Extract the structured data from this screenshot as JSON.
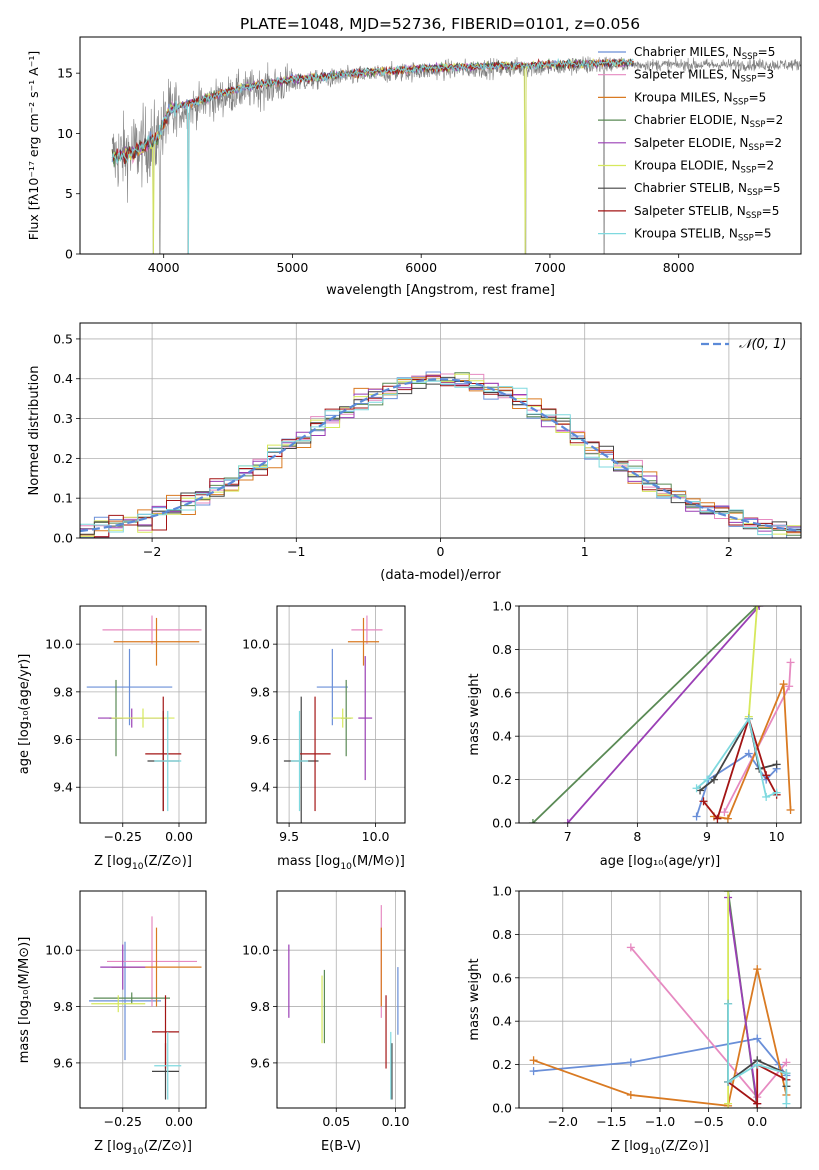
{
  "title": "PLATE=1048, MJD=52736, FIBERID=0101, z=0.056",
  "colors": {
    "Chabrier MILES": "#6a8fd8",
    "Salpeter MILES": "#e68ac1",
    "Kroupa MILES": "#d97a22",
    "Chabrier ELODIE": "#5a8a55",
    "Salpeter ELODIE": "#9a3fb5",
    "Kroupa ELODIE": "#d6e85c",
    "Chabrier STELIB": "#444444",
    "Salpeter STELIB": "#a31515",
    "Kroupa STELIB": "#7fd9df",
    "data": "#808080",
    "normal": "#5b8ad8"
  },
  "chart_data": [
    {
      "panel": "spectrum",
      "type": "line",
      "xlabel": "wavelength [Angstrom, rest frame]",
      "ylabel": "Flux [fλ10⁻¹⁷ erg cm⁻² s⁻¹ A⁻¹]",
      "xlim": [
        3350,
        8950
      ],
      "ylim": [
        0,
        18
      ],
      "xticks": [
        4000,
        5000,
        6000,
        7000,
        8000
      ],
      "yticks": [
        0,
        5,
        10,
        15
      ],
      "legend_position": "right",
      "legend": [
        {
          "label": "Chabrier MILES, N",
          "sub": "SSP",
          "eq": "=5"
        },
        {
          "label": "Salpeter MILES, N",
          "sub": "SSP",
          "eq": "=3"
        },
        {
          "label": "Kroupa MILES, N",
          "sub": "SSP",
          "eq": "=5"
        },
        {
          "label": "Chabrier ELODIE, N",
          "sub": "SSP",
          "eq": "=2"
        },
        {
          "label": "Salpeter ELODIE, N",
          "sub": "SSP",
          "eq": "=2"
        },
        {
          "label": "Kroupa ELODIE, N",
          "sub": "SSP",
          "eq": "=2"
        },
        {
          "label": "Chabrier STELIB, N",
          "sub": "SSP",
          "eq": "=5"
        },
        {
          "label": "Salpeter STELIB, N",
          "sub": "SSP",
          "eq": "=5"
        },
        {
          "label": "Kroupa STELIB, N",
          "sub": "SSP",
          "eq": "=5"
        }
      ],
      "series": [
        {
          "name": "data",
          "x_range": [
            3600,
            8950
          ],
          "continuum": [
            [
              3600,
              8.0
            ],
            [
              3750,
              8.5
            ],
            [
              3950,
              9.5
            ],
            [
              4050,
              11.5
            ],
            [
              4300,
              12.5
            ],
            [
              4600,
              13.5
            ],
            [
              5000,
              14.2
            ],
            [
              5500,
              14.8
            ],
            [
              6000,
              15.2
            ],
            [
              6500,
              15.4
            ],
            [
              7000,
              15.5
            ],
            [
              7400,
              15.7
            ]
          ],
          "masked_dips_x": [
            3920,
            3970,
            4190,
            6810,
            7420
          ]
        },
        {
          "name": "models",
          "continuum": [
            [
              3600,
              8.0
            ],
            [
              3750,
              8.3
            ],
            [
              3950,
              9.6
            ],
            [
              4050,
              12.0
            ],
            [
              4300,
              12.8
            ],
            [
              4600,
              13.8
            ],
            [
              5000,
              14.5
            ],
            [
              5500,
              15.0
            ],
            [
              6000,
              15.4
            ],
            [
              6500,
              15.6
            ],
            [
              7000,
              15.7
            ],
            [
              7650,
              15.9
            ]
          ]
        }
      ]
    },
    {
      "panel": "residuals",
      "type": "line",
      "xlabel": "(data-model)/error",
      "ylabel": "Normed distribution",
      "xlim": [
        -2.5,
        2.5
      ],
      "ylim": [
        0,
        0.54
      ],
      "xticks": [
        -2,
        -1,
        0,
        1,
        2
      ],
      "yticks": [
        0.0,
        0.1,
        0.2,
        0.3,
        0.4,
        0.5
      ],
      "legend": "𝒩(0, 1)",
      "legend_position": "top-right",
      "series": [
        {
          "name": "𝒩(0, 1)",
          "mean": 0,
          "sigma": 1
        }
      ]
    },
    {
      "panel": "age_vs_Z",
      "type": "scatter",
      "xlabel_pre": "Z [log",
      "xlabel_sub": "10",
      "xlabel_post": "(Z/Z⊙)]",
      "ylabel": "age  [log₁₀(age/yr)]",
      "xlim": [
        -0.44,
        0.12
      ],
      "ylim": [
        9.25,
        10.16
      ],
      "xticks": [
        -0.25,
        0.0
      ],
      "yticks": [
        9.4,
        9.6,
        9.8,
        10.0
      ],
      "points": [
        {
          "model": "Chabrier MILES",
          "x": -0.22,
          "y": 9.82,
          "xerr": 0.19,
          "yerr": 0.16
        },
        {
          "model": "Salpeter MILES",
          "x": -0.12,
          "y": 10.06,
          "xerr": 0.22,
          "yerr": 0.06
        },
        {
          "model": "Kroupa MILES",
          "x": -0.1,
          "y": 10.01,
          "xerr": 0.19,
          "yerr": 0.1
        },
        {
          "model": "Chabrier ELODIE",
          "x": -0.28,
          "y": 9.69,
          "xerr": 0.03,
          "yerr": 0.16
        },
        {
          "model": "Salpeter ELODIE",
          "x": -0.21,
          "y": 9.69,
          "xerr": 0.15,
          "yerr": 0.04
        },
        {
          "model": "Kroupa ELODIE",
          "x": -0.16,
          "y": 9.69,
          "xerr": 0.14,
          "yerr": 0.04
        },
        {
          "model": "Chabrier STELIB",
          "x": -0.07,
          "y": 9.51,
          "xerr": 0.07,
          "yerr": 0.21
        },
        {
          "model": "Salpeter STELIB",
          "x": -0.07,
          "y": 9.54,
          "xerr": 0.08,
          "yerr": 0.24
        },
        {
          "model": "Kroupa STELIB",
          "x": -0.05,
          "y": 9.51,
          "xerr": 0.06,
          "yerr": 0.21
        }
      ]
    },
    {
      "panel": "age_vs_mass",
      "type": "scatter",
      "xlabel_pre": "mass [log",
      "xlabel_sub": "10",
      "xlabel_post": "(M/M⊙)]",
      "xlim": [
        9.43,
        10.17
      ],
      "ylim": [
        9.25,
        10.16
      ],
      "xticks": [
        9.5,
        10.0
      ],
      "yticks": [
        9.4,
        9.6,
        9.8,
        10.0
      ],
      "points": [
        {
          "model": "Chabrier MILES",
          "x": 9.75,
          "y": 9.82,
          "xerr": 0.09,
          "yerr": 0.16
        },
        {
          "model": "Salpeter MILES",
          "x": 9.95,
          "y": 10.06,
          "xerr": 0.09,
          "yerr": 0.06
        },
        {
          "model": "Kroupa MILES",
          "x": 9.93,
          "y": 10.01,
          "xerr": 0.09,
          "yerr": 0.1
        },
        {
          "model": "Chabrier ELODIE",
          "x": 9.83,
          "y": 9.69,
          "xerr": 0.03,
          "yerr": 0.16
        },
        {
          "model": "Salpeter ELODIE",
          "x": 9.94,
          "y": 9.69,
          "xerr": 0.04,
          "yerr": 0.26
        },
        {
          "model": "Kroupa ELODIE",
          "x": 9.81,
          "y": 9.69,
          "xerr": 0.06,
          "yerr": 0.04
        },
        {
          "model": "Chabrier STELIB",
          "x": 9.57,
          "y": 9.51,
          "xerr": 0.1,
          "yerr": 0.27
        },
        {
          "model": "Salpeter STELIB",
          "x": 9.65,
          "y": 9.54,
          "xerr": 0.09,
          "yerr": 0.24
        },
        {
          "model": "Kroupa STELIB",
          "x": 9.56,
          "y": 9.51,
          "xerr": 0.05,
          "yerr": 0.21
        }
      ]
    },
    {
      "panel": "mass_weight_vs_age",
      "type": "line",
      "xlabel": "age  [log₁₀(age/yr)]",
      "ylabel": "mass weight",
      "xlim": [
        6.3,
        10.35
      ],
      "ylim": [
        0,
        1
      ],
      "xticks": [
        7,
        8,
        9,
        10
      ],
      "yticks": [
        0.0,
        0.2,
        0.4,
        0.6,
        0.8,
        1.0
      ],
      "series": [
        {
          "name": "Chabrier MILES",
          "x": [
            8.85,
            9.02,
            9.6,
            9.85,
            10.0
          ],
          "y": [
            0.03,
            0.2,
            0.32,
            0.2,
            0.25
          ]
        },
        {
          "name": "Salpeter MILES",
          "x": [
            9.25,
            10.18,
            10.2
          ],
          "y": [
            0.05,
            0.63,
            0.74
          ]
        },
        {
          "name": "Kroupa MILES",
          "x": [
            9.1,
            9.3,
            10.1,
            10.2
          ],
          "y": [
            0.03,
            0.02,
            0.64,
            0.06
          ]
        },
        {
          "name": "Chabrier ELODIE",
          "x": [
            6.5,
            9.72
          ],
          "y": [
            0.0,
            1.0
          ]
        },
        {
          "name": "Salpeter ELODIE",
          "x": [
            7.0,
            9.75
          ],
          "y": [
            0.0,
            1.0
          ]
        },
        {
          "name": "Kroupa ELODIE",
          "x": [
            9.6,
            9.72
          ],
          "y": [
            0.49,
            1.0
          ]
        },
        {
          "name": "Chabrier STELIB",
          "x": [
            8.9,
            9.1,
            9.6,
            9.75,
            10.0
          ],
          "y": [
            0.15,
            0.2,
            0.48,
            0.25,
            0.27
          ]
        },
        {
          "name": "Salpeter STELIB",
          "x": [
            8.95,
            9.15,
            9.6,
            9.85,
            10.0
          ],
          "y": [
            0.1,
            0.02,
            0.48,
            0.22,
            0.13
          ]
        },
        {
          "name": "Kroupa STELIB",
          "x": [
            8.85,
            9.0,
            9.6,
            9.85,
            10.0
          ],
          "y": [
            0.16,
            0.2,
            0.48,
            0.12,
            0.14
          ]
        }
      ]
    },
    {
      "panel": "mass_vs_Z",
      "type": "scatter",
      "xlabel_pre": "Z [log",
      "xlabel_sub": "10",
      "xlabel_post": "(Z/Z⊙)]",
      "ylabel": "mass [log₁₀(M/M⊙)]",
      "xlim": [
        -0.44,
        0.12
      ],
      "ylim": [
        9.44,
        10.21
      ],
      "xticks": [
        -0.25,
        0.0
      ],
      "yticks": [
        9.6,
        9.8,
        10.0
      ],
      "points": [
        {
          "model": "Chabrier MILES",
          "x": -0.24,
          "y": 9.82,
          "xerr": 0.16,
          "yerr": 0.21
        },
        {
          "model": "Salpeter MILES",
          "x": -0.12,
          "y": 9.96,
          "xerr": 0.2,
          "yerr": 0.16
        },
        {
          "model": "Kroupa MILES",
          "x": -0.1,
          "y": 9.94,
          "xerr": 0.2,
          "yerr": 0.14
        },
        {
          "model": "Chabrier ELODIE",
          "x": -0.21,
          "y": 9.83,
          "xerr": 0.17,
          "yerr": 0.02
        },
        {
          "model": "Salpeter ELODIE",
          "x": -0.25,
          "y": 9.94,
          "xerr": 0.1,
          "yerr": 0.08
        },
        {
          "model": "Kroupa ELODIE",
          "x": -0.27,
          "y": 9.81,
          "xerr": 0.12,
          "yerr": 0.03
        },
        {
          "model": "Chabrier STELIB",
          "x": -0.06,
          "y": 9.57,
          "xerr": 0.06,
          "yerr": 0.1
        },
        {
          "model": "Salpeter STELIB",
          "x": -0.06,
          "y": 9.71,
          "xerr": 0.06,
          "yerr": 0.13
        },
        {
          "model": "Kroupa STELIB",
          "x": -0.05,
          "y": 9.59,
          "xerr": 0.06,
          "yerr": 0.12
        }
      ]
    },
    {
      "panel": "mass_vs_EBV",
      "type": "scatter",
      "xlabel": "E(B-V)",
      "xlim": [
        0.0,
        0.108
      ],
      "ylim": [
        9.44,
        10.21
      ],
      "xticks": [
        0.05,
        0.1
      ],
      "yticks": [
        9.6,
        9.8,
        10.0
      ],
      "points": [
        {
          "model": "Chabrier MILES",
          "x": 0.102,
          "y": 9.82,
          "yerr": 0.12
        },
        {
          "model": "Salpeter MILES",
          "x": 0.088,
          "y": 9.96,
          "yerr": 0.2
        },
        {
          "model": "Kroupa MILES",
          "x": 0.088,
          "y": 9.94,
          "yerr": 0.14
        },
        {
          "model": "Chabrier ELODIE",
          "x": 0.04,
          "y": 9.8,
          "yerr": 0.13
        },
        {
          "model": "Salpeter ELODIE",
          "x": 0.01,
          "y": 9.89,
          "yerr": 0.13
        },
        {
          "model": "Kroupa ELODIE",
          "x": 0.038,
          "y": 9.79,
          "yerr": 0.12
        },
        {
          "model": "Chabrier STELIB",
          "x": 0.097,
          "y": 9.57,
          "yerr": 0.1
        },
        {
          "model": "Salpeter STELIB",
          "x": 0.092,
          "y": 9.71,
          "yerr": 0.13
        },
        {
          "model": "Kroupa STELIB",
          "x": 0.096,
          "y": 9.59,
          "yerr": 0.12
        }
      ]
    },
    {
      "panel": "mass_weight_vs_Z",
      "type": "line",
      "xlabel_pre": "Z [log",
      "xlabel_sub": "10",
      "xlabel_post": "(Z/Z⊙)]",
      "ylabel": "mass weight",
      "xlim": [
        -2.45,
        0.45
      ],
      "ylim": [
        0,
        1
      ],
      "xticks": [
        -2.0,
        -1.5,
        -1.0,
        -0.5,
        0.0
      ],
      "yticks": [
        0.0,
        0.2,
        0.4,
        0.6,
        0.8,
        1.0
      ],
      "series": [
        {
          "name": "Chabrier MILES",
          "x": [
            -2.3,
            -1.3,
            0.0,
            0.22,
            0.3
          ],
          "y": [
            0.17,
            0.21,
            0.32,
            0.2,
            0.15
          ]
        },
        {
          "name": "Salpeter MILES",
          "x": [
            -1.3,
            0.0,
            0.3
          ],
          "y": [
            0.74,
            0.05,
            0.21
          ]
        },
        {
          "name": "Kroupa MILES",
          "x": [
            -2.3,
            -1.3,
            -0.3,
            0.0,
            0.3
          ],
          "y": [
            0.22,
            0.06,
            0.01,
            0.64,
            0.06
          ]
        },
        {
          "name": "Chabrier ELODIE",
          "x": [
            -0.3,
            0.0
          ],
          "y": [
            1.0,
            0.0
          ]
        },
        {
          "name": "Salpeter ELODIE",
          "x": [
            -0.3,
            0.0
          ],
          "y": [
            0.97,
            0.02
          ]
        },
        {
          "name": "Kroupa ELODIE",
          "x": [
            -0.3,
            -0.3
          ],
          "y": [
            0.02,
            1.0
          ]
        },
        {
          "name": "Chabrier STELIB",
          "x": [
            -0.3,
            -0.3,
            0.0,
            0.3,
            0.3
          ],
          "y": [
            0.48,
            0.12,
            0.22,
            0.16,
            0.1
          ]
        },
        {
          "name": "Salpeter STELIB",
          "x": [
            -0.3,
            0.0,
            0.0,
            0.3
          ],
          "y": [
            0.12,
            0.02,
            0.2,
            0.13
          ]
        },
        {
          "name": "Kroupa STELIB",
          "x": [
            -0.3,
            -0.3,
            0.0,
            0.3,
            0.3
          ],
          "y": [
            0.48,
            0.12,
            0.2,
            0.16,
            0.02
          ]
        }
      ]
    }
  ]
}
